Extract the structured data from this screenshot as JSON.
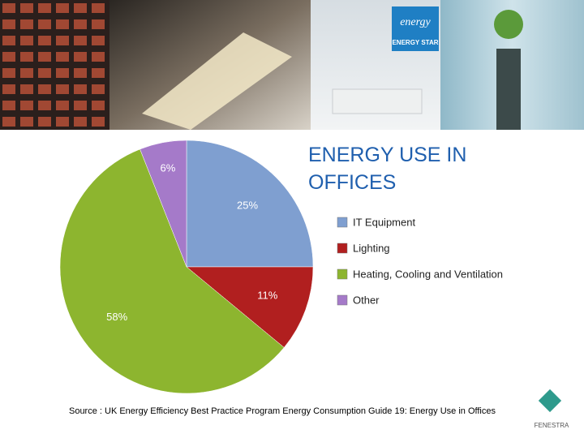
{
  "chart_data": {
    "type": "pie",
    "title": "ENERGY USE IN OFFICES",
    "categories": [
      "IT Equipment",
      "Lighting",
      "Heating, Cooling and Ventilation",
      "Other"
    ],
    "values": [
      25,
      11,
      58,
      6
    ],
    "value_labels": [
      "25%",
      "11%",
      "58%",
      "6%"
    ],
    "colors": [
      "#7f9fd0",
      "#b11f1f",
      "#8db52f",
      "#a57ac9"
    ],
    "legend": "right",
    "source": "Source : UK Energy Efficiency Best Practice Program Energy Consumption Guide 19: Energy Use in Offices"
  },
  "header_logo": {
    "script": "energy",
    "label": "ENERGY STAR"
  },
  "footer_logo": "FENESTRA"
}
